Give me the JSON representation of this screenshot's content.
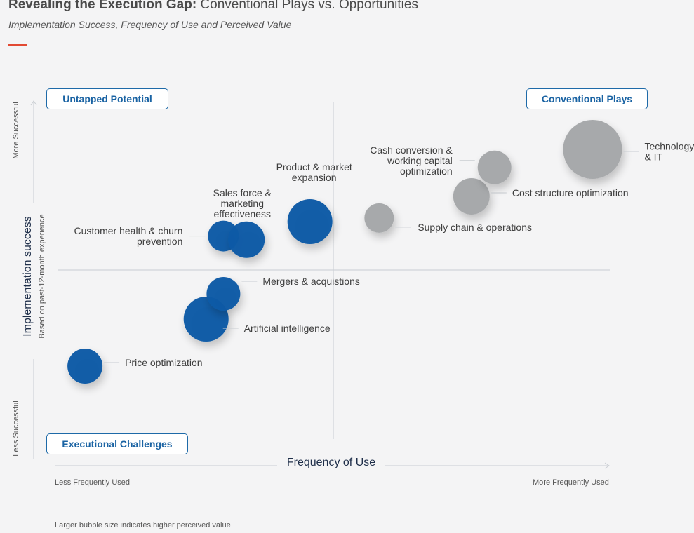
{
  "header": {
    "title_bold": "Revealing the Execution Gap:",
    "title_rest": " Conventional Plays vs. Opportunities",
    "subtitle": "Implementation Success, Frequency of Use and Perceived Value"
  },
  "quadrants": {
    "top_left": "Untapped Potential",
    "top_right": "Conventional Plays",
    "bottom_left": "Executional Challenges"
  },
  "axes": {
    "x_title": "Frequency of Use",
    "x_low": "Less Frequently Used",
    "x_high": "More Frequently Used",
    "y_title": "Implementation success",
    "y_subtitle": "Based on past-12-month experience",
    "y_high": "More Successful",
    "y_low": "Less Successful"
  },
  "footnote": "Larger bubble size indicates higher perceived value",
  "colors": {
    "opportunity": "#0c5aa6",
    "conventional": "#a7a9ab",
    "accent": "#e24a33"
  },
  "chart_data": {
    "type": "scatter",
    "x_range": [
      0,
      100
    ],
    "y_range": [
      0,
      100
    ],
    "size_meaning": "perceived value",
    "series": [
      {
        "group": "opportunity",
        "points": [
          {
            "name": "Price optimization",
            "x": 5,
            "y": 20,
            "size": 25
          },
          {
            "name": "Artificial intelligence",
            "x": 26,
            "y": 33,
            "size": 32
          },
          {
            "name": "Mergers & acquistions",
            "x": 29,
            "y": 40,
            "size": 24
          },
          {
            "name": "Customer health & churn prevention",
            "x": 29,
            "y": 56,
            "size": 22
          },
          {
            "name": "Sales force & marketing effectiveness",
            "x": 33,
            "y": 55,
            "size": 26
          },
          {
            "name": "Product & market expansion",
            "x": 44,
            "y": 60,
            "size": 32
          }
        ]
      },
      {
        "group": "conventional",
        "points": [
          {
            "name": "Supply chain & operations",
            "x": 56,
            "y": 61,
            "size": 21
          },
          {
            "name": "Cost structure optimization",
            "x": 72,
            "y": 67,
            "size": 26
          },
          {
            "name": "Cash conversion & working capital optimization",
            "x": 76,
            "y": 75,
            "size": 24
          },
          {
            "name": "Technology & IT",
            "x": 93,
            "y": 80,
            "size": 42
          }
        ]
      }
    ]
  }
}
